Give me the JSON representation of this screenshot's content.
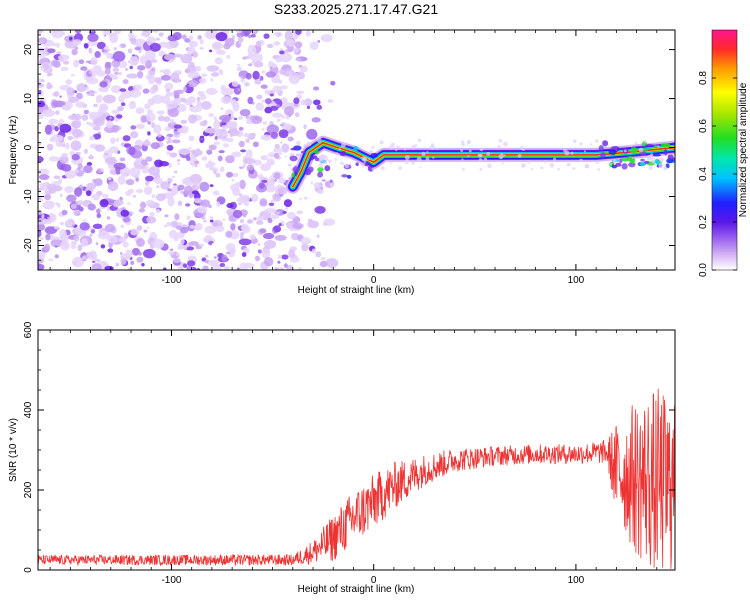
{
  "title": "S233.2025.271.17.47.G21",
  "spectrogram": {
    "type": "heatmap",
    "xlabel": "Height of straight line (km)",
    "ylabel": "Frequency (Hz)",
    "xlim": [
      -166,
      149
    ],
    "ylim": [
      -25,
      24
    ],
    "xticks": [
      -100,
      0,
      100
    ],
    "yticks": [
      -20,
      -10,
      0,
      10,
      20
    ],
    "noise_region_x": [
      -166,
      -30
    ],
    "ridge_track": [
      {
        "x": -40,
        "y": -8
      },
      {
        "x": -36,
        "y": -5
      },
      {
        "x": -32,
        "y": -1
      },
      {
        "x": -25,
        "y": 1
      },
      {
        "x": -18,
        "y": 0
      },
      {
        "x": -10,
        "y": -1
      },
      {
        "x": 0,
        "y": -3
      },
      {
        "x": 5,
        "y": -1.5
      },
      {
        "x": 110,
        "y": -1.5
      },
      {
        "x": 125,
        "y": -1
      },
      {
        "x": 149,
        "y": 0
      }
    ]
  },
  "colorbar": {
    "label": "Normalized spectral amplitude",
    "range": [
      0.0,
      1.0
    ],
    "ticks": [
      0.0,
      0.2,
      0.4,
      0.6,
      0.8
    ],
    "tick_labels": [
      "0.0",
      "0.2",
      "0.4",
      "0.6",
      "0.8"
    ]
  },
  "snr": {
    "type": "line",
    "xlabel": "Height of straight line (km)",
    "ylabel": "SNR (10 * v/v)",
    "xlim": [
      -166,
      149
    ],
    "ylim": [
      0,
      600
    ],
    "xticks": [
      -100,
      0,
      100
    ],
    "yticks": [
      0,
      200,
      400,
      600
    ],
    "line_color": "#ee3333",
    "envelope": [
      {
        "x": -166,
        "mean": 25,
        "spread": 12
      },
      {
        "x": -40,
        "mean": 25,
        "spread": 14
      },
      {
        "x": -30,
        "mean": 45,
        "spread": 30
      },
      {
        "x": -20,
        "mean": 80,
        "spread": 60
      },
      {
        "x": -10,
        "mean": 130,
        "spread": 70
      },
      {
        "x": 0,
        "mean": 170,
        "spread": 70
      },
      {
        "x": 10,
        "mean": 210,
        "spread": 60
      },
      {
        "x": 25,
        "mean": 250,
        "spread": 40
      },
      {
        "x": 40,
        "mean": 275,
        "spread": 30
      },
      {
        "x": 60,
        "mean": 285,
        "spread": 25
      },
      {
        "x": 80,
        "mean": 290,
        "spread": 25
      },
      {
        "x": 100,
        "mean": 290,
        "spread": 25
      },
      {
        "x": 115,
        "mean": 295,
        "spread": 30
      },
      {
        "x": 120,
        "mean": 250,
        "spread": 120
      },
      {
        "x": 130,
        "mean": 230,
        "spread": 200
      },
      {
        "x": 140,
        "mean": 220,
        "spread": 240
      },
      {
        "x": 149,
        "mean": 200,
        "spread": 220
      }
    ]
  }
}
